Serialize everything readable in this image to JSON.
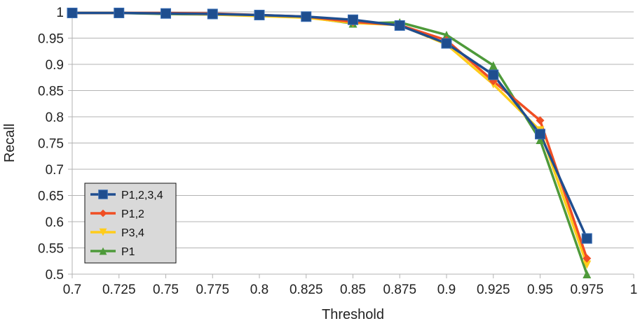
{
  "chart_data": {
    "type": "line",
    "title": "",
    "xlabel": "Threshold",
    "ylabel": "Recall",
    "xlim": [
      0.7,
      1.0
    ],
    "ylim": [
      0.5,
      1.0
    ],
    "grid": true,
    "legend_position": "bottom-left",
    "x_ticks": [
      "0.7",
      "0.725",
      "0.75",
      "0.775",
      "0.8",
      "0.825",
      "0.85",
      "0.875",
      "0.9",
      "0.925",
      "0.95",
      "0.975",
      "1"
    ],
    "y_ticks": [
      "0.5",
      "0.55",
      "0.6",
      "0.65",
      "0.7",
      "0.75",
      "0.8",
      "0.85",
      "0.9",
      "0.95",
      "1"
    ],
    "x": [
      0.7,
      0.725,
      0.75,
      0.775,
      0.8,
      0.825,
      0.85,
      0.875,
      0.9,
      0.925,
      0.95,
      0.975
    ],
    "series": [
      {
        "name": "P1,2,3,4",
        "color": "#1f4e8f",
        "marker": "square",
        "values": [
          0.998,
          0.998,
          0.997,
          0.996,
          0.994,
          0.991,
          0.985,
          0.974,
          0.94,
          0.88,
          0.767,
          0.568
        ]
      },
      {
        "name": "P1,2",
        "color": "#f04e23",
        "marker": "diamond",
        "values": [
          0.998,
          0.998,
          0.998,
          0.997,
          0.994,
          0.991,
          0.981,
          0.975,
          0.946,
          0.868,
          0.793,
          0.53
        ]
      },
      {
        "name": "P3,4",
        "color": "#ffcc1a",
        "marker": "triangle-down",
        "values": [
          0.998,
          0.998,
          0.997,
          0.995,
          0.992,
          0.989,
          0.979,
          0.975,
          0.938,
          0.862,
          0.774,
          0.518
        ]
      },
      {
        "name": "P1",
        "color": "#4e9a3a",
        "marker": "triangle-up",
        "values": [
          0.998,
          0.998,
          0.996,
          0.995,
          0.993,
          0.99,
          0.978,
          0.98,
          0.956,
          0.898,
          0.756,
          0.5
        ]
      }
    ]
  }
}
